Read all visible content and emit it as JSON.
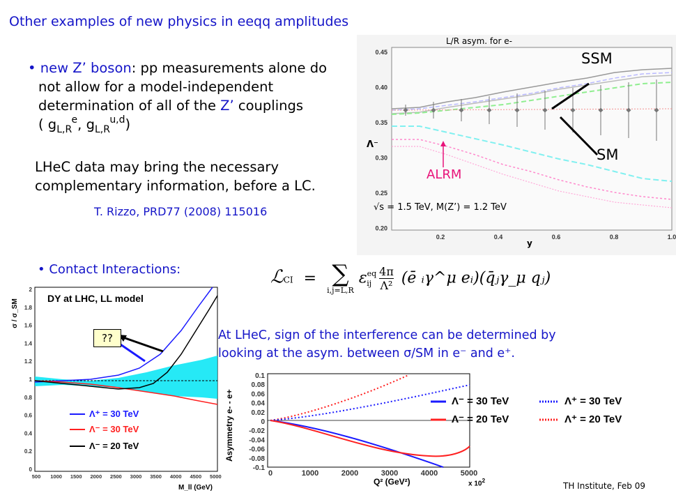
{
  "title": "Other examples of new physics in eeqq amplitudes",
  "zprime": {
    "bullet": "•",
    "intro": "new Z’ boson",
    "text1": ": pp measurements alone do",
    "line2": "not allow for a model-independent",
    "line3a": "determination of all of the ",
    "zp": "Z’",
    "line3b": " couplings",
    "open": "( g",
    "sub1": "L,R",
    "sup1": "e",
    "comma": ", g",
    "sub2": "L,R",
    "sup2": "u,d",
    "close": ")"
  },
  "lhec_note": {
    "line1": "LHeC data may bring the necessary",
    "line2": "complementary information, before a LC."
  },
  "reference": "T. Rizzo, PRD77 (2008) 115016",
  "asym_plot": {
    "caption": "L/R asym. for e-",
    "ylabel": "Λ⁻",
    "xlabel": "y",
    "yticks": [
      "0.45",
      "0.40",
      "0.35",
      "0.30",
      "0.25",
      "0.20"
    ],
    "xticks": [
      "0.2",
      "0.4",
      "0.6",
      "0.8",
      "1.0"
    ],
    "label_ssm": "SSM",
    "label_sm": "SM",
    "label_alrm": "ALRM",
    "footnote": "√s = 1.5 TeV, M(Z’) = 1.2 TeV"
  },
  "contact": {
    "bullet": "•",
    "label": "Contact Interactions:",
    "formula_lhs": "ℒ",
    "formula_lhs_sub": "CI",
    "formula_eq": "=",
    "formula_sum": "∑",
    "formula_sum_sub": "i,j=L,R",
    "formula_eps": "ε",
    "formula_eps_sup": "eq",
    "formula_eps_sub": "ij",
    "formula_frac_num": "4π",
    "formula_frac_den": "Λ²",
    "formula_body": "(ē ᵢγ^μ eᵢ)(q̄ⱼγ_μ qⱼ)"
  },
  "lhec_sign": {
    "line1": "At LHeC, sign of the interference can be determined by",
    "line2": "looking at the asym. between σ/SM in e⁻ and e⁺."
  },
  "dy_plot": {
    "title": "DY at LHC, LL model",
    "ylabel": "σ / σ_SM",
    "xlabel": "M_ll (GeV)",
    "yticks": [
      "2",
      "1.8",
      "1.6",
      "1.4",
      "1.2",
      "1",
      "0.8",
      "0.6",
      "0.4",
      "0.2",
      "0"
    ],
    "xticks": [
      "500",
      "1000",
      "1500",
      "2000",
      "2500",
      "3000",
      "3500",
      "4000",
      "4500",
      "5000"
    ],
    "question": "??",
    "legend": [
      {
        "label": "Λ⁺ = 30 TeV",
        "color": "#1a1aff"
      },
      {
        "label": "Λ⁻ = 30 TeV",
        "color": "#ff2020"
      },
      {
        "label": "Λ⁻ = 20 TeV",
        "color": "#000000"
      }
    ]
  },
  "asym_ee_plot": {
    "ylabel": "Asymmetry e- - e+",
    "xlabel": "Q² (GeV²)",
    "xscale": "x 10",
    "xscale_exp": "2",
    "yticks": [
      "0.1",
      "0.08",
      "0.06",
      "0.04",
      "0.02",
      "0",
      "-0.02",
      "-0.04",
      "-0.06",
      "-0.08",
      "-0.1"
    ],
    "xticks": [
      "0",
      "1000",
      "2000",
      "3000",
      "4000",
      "5000"
    ],
    "legend": [
      {
        "label": "Λ⁻ = 30 TeV",
        "color": "#1a1aff",
        "style": "solid"
      },
      {
        "label": "Λ⁺ = 30 TeV",
        "color": "#1a1aff",
        "style": "dotted"
      },
      {
        "label": "Λ⁻ = 20 TeV",
        "color": "#ff2020",
        "style": "solid"
      },
      {
        "label": "Λ⁺ = 20 TeV",
        "color": "#ff2020",
        "style": "dotted"
      }
    ]
  },
  "footer": "TH Institute, Feb 09"
}
